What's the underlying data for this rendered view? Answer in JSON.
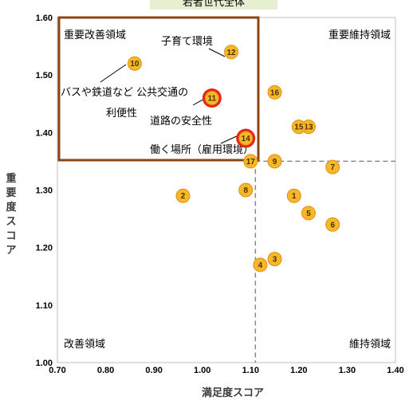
{
  "chart_data": {
    "type": "scatter",
    "title": "若者世代全体",
    "xlabel": "満足度スコア",
    "ylabel": "重要度スコア",
    "xlim": [
      0.7,
      1.4
    ],
    "ylim": [
      1.0,
      1.6
    ],
    "xticks": [
      "0.70",
      "0.80",
      "0.90",
      "1.00",
      "1.10",
      "1.20",
      "1.30",
      "1.40"
    ],
    "yticks": [
      "1.00",
      "1.10",
      "1.20",
      "1.30",
      "1.40",
      "1.50",
      "1.60"
    ],
    "reference_lines": {
      "x": 1.11,
      "y": 1.35
    },
    "quadrants": {
      "top_left": "重要改善領域",
      "top_right": "重要維持領域",
      "bottom_left": "改善領域",
      "bottom_right": "維持領域"
    },
    "points": [
      {
        "id": "1",
        "x": 1.19,
        "y": 1.29,
        "highlight": false
      },
      {
        "id": "2",
        "x": 0.96,
        "y": 1.29,
        "highlight": false
      },
      {
        "id": "3",
        "x": 1.15,
        "y": 1.18,
        "highlight": false
      },
      {
        "id": "4",
        "x": 1.12,
        "y": 1.17,
        "highlight": false
      },
      {
        "id": "5",
        "x": 1.22,
        "y": 1.26,
        "highlight": false
      },
      {
        "id": "6",
        "x": 1.27,
        "y": 1.24,
        "highlight": false
      },
      {
        "id": "7",
        "x": 1.27,
        "y": 1.34,
        "highlight": false
      },
      {
        "id": "8",
        "x": 1.09,
        "y": 1.3,
        "highlight": false
      },
      {
        "id": "9",
        "x": 1.15,
        "y": 1.35,
        "highlight": false
      },
      {
        "id": "10",
        "x": 0.86,
        "y": 1.52,
        "highlight": false
      },
      {
        "id": "11",
        "x": 1.02,
        "y": 1.46,
        "highlight": true
      },
      {
        "id": "12",
        "x": 1.06,
        "y": 1.54,
        "highlight": false
      },
      {
        "id": "13",
        "x": 1.22,
        "y": 1.41,
        "highlight": false
      },
      {
        "id": "14",
        "x": 1.09,
        "y": 1.39,
        "highlight": true
      },
      {
        "id": "15",
        "x": 1.2,
        "y": 1.41,
        "highlight": false
      },
      {
        "id": "16",
        "x": 1.15,
        "y": 1.47,
        "highlight": false
      },
      {
        "id": "17",
        "x": 1.1,
        "y": 1.35,
        "highlight": false
      }
    ],
    "annotations": [
      {
        "target": "10",
        "text": "バスや鉄道など 公共交通の"
      },
      {
        "target": "10",
        "text": "利便性"
      },
      {
        "target": "12",
        "text": "子育て環境"
      },
      {
        "target": "11",
        "text": "道路の安全性"
      },
      {
        "target": "14",
        "text": "働く場所（雇用環境）"
      }
    ]
  },
  "colors": {
    "marker_fill": "#f6b82a",
    "marker_stroke": "#e0900a",
    "highlight_ring": "#e8231a",
    "important_box": "#8b4513",
    "title_bg": "#e6f0d0",
    "dashed": "#888888"
  }
}
